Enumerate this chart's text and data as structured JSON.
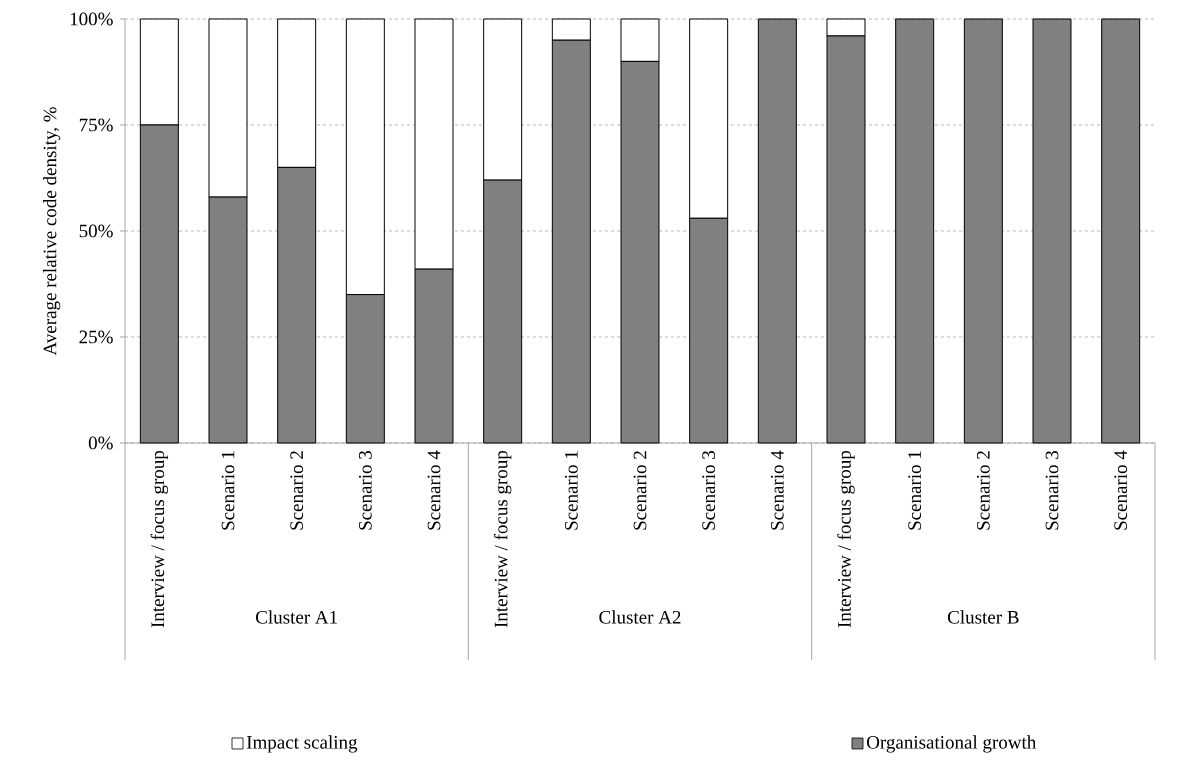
{
  "chart_data": {
    "type": "bar",
    "stacked": true,
    "ylabel": "Average relative code density, %",
    "categories": [
      "Interview / focus group",
      "Scenario 1",
      "Scenario 2",
      "Scenario 3",
      "Scenario 4",
      "Interview / focus group",
      "Scenario 1",
      "Scenario 2",
      "Scenario 3",
      "Scenario 4",
      "Interview / focus group",
      "Scenario 1",
      "Scenario 2",
      "Scenario 3",
      "Scenario 4"
    ],
    "series": [
      {
        "name": "Organisational growth",
        "color": "#808080",
        "values": [
          75,
          58,
          65,
          35,
          41,
          62,
          95,
          90,
          53,
          100,
          96,
          100,
          100,
          100,
          100
        ]
      },
      {
        "name": "Impact scaling",
        "color": "#ffffff",
        "values": [
          25,
          42,
          35,
          65,
          59,
          38,
          5,
          10,
          47,
          0,
          4,
          0,
          0,
          0,
          0
        ]
      }
    ],
    "ylim": [
      0,
      100
    ],
    "yticks": [
      {
        "value": 0,
        "label": "0%"
      },
      {
        "value": 25,
        "label": "25%"
      },
      {
        "value": 50,
        "label": "50%"
      },
      {
        "value": 75,
        "label": "75%"
      },
      {
        "value": 100,
        "label": "100%"
      }
    ],
    "grid": "y",
    "legend": "bottom",
    "annotations": [
      "Cluster A1",
      "Cluster A2",
      "Cluster B"
    ]
  }
}
